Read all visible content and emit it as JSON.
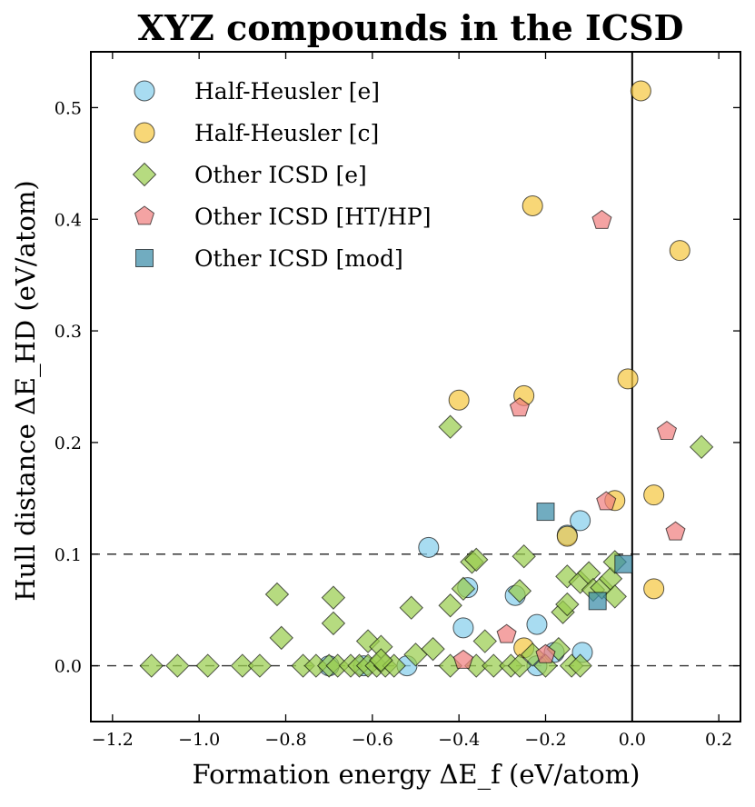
{
  "chart_data": {
    "type": "scatter",
    "title": "XYZ compounds in the ICSD",
    "xlabel": "Formation energy ΔE_f (eV/atom)",
    "ylabel": "Hull distance ΔE_HD (eV/atom)",
    "xlim": [
      -1.25,
      0.25
    ],
    "ylim": [
      -0.05,
      0.55
    ],
    "xticks": [
      -1.2,
      -1.0,
      -0.8,
      -0.6,
      -0.4,
      -0.2,
      0.0,
      0.2
    ],
    "xtick_labels": [
      "−1.2",
      "−1.0",
      "−0.8",
      "−0.6",
      "−0.4",
      "−0.2",
      "0.0",
      "0.2"
    ],
    "yticks": [
      0.0,
      0.1,
      0.2,
      0.3,
      0.4,
      0.5
    ],
    "ytick_labels": [
      "0.0",
      "0.1",
      "0.2",
      "0.3",
      "0.4",
      "0.5"
    ],
    "vertical_line_x": 0.0,
    "dashed_hlines": [
      0.0,
      0.1
    ],
    "grid": false,
    "legend_position": "top-left",
    "series": [
      {
        "name": "Half-Heusler [e]",
        "marker": "circle",
        "color": "#87CEEB",
        "points": [
          [
            -0.47,
            0.106
          ],
          [
            -0.38,
            0.07
          ],
          [
            -0.39,
            0.034
          ],
          [
            -0.27,
            0.063
          ],
          [
            -0.22,
            0.037
          ],
          [
            -0.12,
            0.13
          ],
          [
            -0.15,
            0.117
          ],
          [
            -0.115,
            0.012
          ],
          [
            -0.18,
            0.012
          ],
          [
            -0.22,
            0.0
          ],
          [
            -0.52,
            0.0
          ],
          [
            -0.7,
            0.0
          ],
          [
            -0.62,
            0.0
          ]
        ]
      },
      {
        "name": "Half-Heusler [c]",
        "marker": "circle",
        "color": "#F5C842",
        "points": [
          [
            0.02,
            0.515
          ],
          [
            -0.23,
            0.412
          ],
          [
            0.11,
            0.372
          ],
          [
            -0.01,
            0.257
          ],
          [
            -0.4,
            0.238
          ],
          [
            -0.25,
            0.242
          ],
          [
            -0.04,
            0.148
          ],
          [
            0.05,
            0.153
          ],
          [
            -0.15,
            0.116
          ],
          [
            0.05,
            0.069
          ],
          [
            -0.25,
            0.016
          ]
        ]
      },
      {
        "name": "Other ICSD [e]",
        "marker": "diamond",
        "color": "#9ACD4F",
        "points": [
          [
            -1.11,
            0.0
          ],
          [
            -1.05,
            0.0
          ],
          [
            -0.98,
            0.0
          ],
          [
            -0.9,
            0.0
          ],
          [
            -0.86,
            0.0
          ],
          [
            -0.76,
            0.0
          ],
          [
            -0.73,
            0.0
          ],
          [
            -0.7,
            0.0
          ],
          [
            -0.68,
            0.0
          ],
          [
            -0.65,
            0.0
          ],
          [
            -0.63,
            0.0
          ],
          [
            -0.61,
            0.0
          ],
          [
            -0.59,
            0.0
          ],
          [
            -0.57,
            0.0
          ],
          [
            -0.55,
            0.0
          ],
          [
            -0.42,
            0.0
          ],
          [
            -0.36,
            0.0
          ],
          [
            -0.32,
            0.0
          ],
          [
            -0.28,
            0.0
          ],
          [
            -0.26,
            0.0
          ],
          [
            -0.2,
            0.0
          ],
          [
            -0.14,
            0.0
          ],
          [
            -0.12,
            0.0
          ],
          [
            -0.82,
            0.064
          ],
          [
            -0.69,
            0.061
          ],
          [
            -0.69,
            0.038
          ],
          [
            -0.81,
            0.025
          ],
          [
            -0.61,
            0.022
          ],
          [
            -0.58,
            0.017
          ],
          [
            -0.58,
            0.005
          ],
          [
            -0.51,
            0.052
          ],
          [
            -0.5,
            0.01
          ],
          [
            -0.46,
            0.015
          ],
          [
            -0.42,
            0.214
          ],
          [
            -0.42,
            0.054
          ],
          [
            -0.37,
            0.093
          ],
          [
            -0.36,
            0.095
          ],
          [
            -0.39,
            0.069
          ],
          [
            -0.34,
            0.022
          ],
          [
            -0.25,
            0.098
          ],
          [
            -0.26,
            0.067
          ],
          [
            -0.23,
            0.01
          ],
          [
            -0.17,
            0.015
          ],
          [
            -0.16,
            0.048
          ],
          [
            -0.15,
            0.055
          ],
          [
            -0.15,
            0.08
          ],
          [
            -0.12,
            0.075
          ],
          [
            -0.1,
            0.083
          ],
          [
            -0.09,
            0.068
          ],
          [
            -0.07,
            0.07
          ],
          [
            -0.05,
            0.078
          ],
          [
            -0.04,
            0.093
          ],
          [
            -0.04,
            0.062
          ],
          [
            0.16,
            0.196
          ]
        ]
      },
      {
        "name": "Other ICSD [HT/HP]",
        "marker": "pentagon",
        "color": "#F08080",
        "points": [
          [
            -0.07,
            0.399
          ],
          [
            -0.26,
            0.231
          ],
          [
            0.08,
            0.21
          ],
          [
            -0.06,
            0.147
          ],
          [
            0.1,
            0.12
          ],
          [
            -0.29,
            0.028
          ],
          [
            -0.2,
            0.01
          ],
          [
            -0.39,
            0.005
          ]
        ]
      },
      {
        "name": "Other ICSD [mod]",
        "marker": "square",
        "color": "#3A8CA8",
        "points": [
          [
            -0.2,
            0.138
          ],
          [
            -0.08,
            0.058
          ],
          [
            -0.02,
            0.091
          ]
        ]
      }
    ]
  }
}
